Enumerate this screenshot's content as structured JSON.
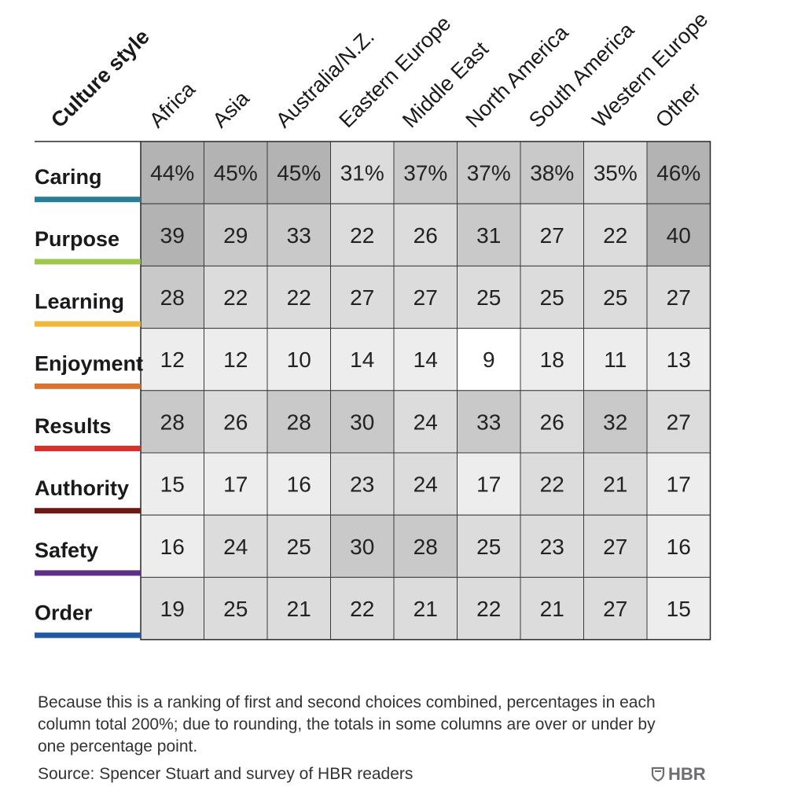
{
  "chart_data": {
    "type": "heatmap",
    "corner_title": "Culture style",
    "columns": [
      "Africa",
      "Asia",
      "Australia/N.Z.",
      "Eastern Europe",
      "Middle East",
      "North America",
      "South America",
      "Western Europe",
      "Other"
    ],
    "rows": [
      {
        "label": "Caring",
        "color": "#2b7d95",
        "values": [
          "44%",
          "45%",
          "45%",
          "31%",
          "37%",
          "37%",
          "38%",
          "35%",
          "46%"
        ],
        "shades": [
          44,
          45,
          45,
          31,
          37,
          37,
          38,
          35,
          46
        ]
      },
      {
        "label": "Purpose",
        "color": "#9cc94a",
        "values": [
          "39",
          "29",
          "33",
          "22",
          "26",
          "31",
          "27",
          "22",
          "40"
        ],
        "shades": [
          39,
          29,
          33,
          22,
          26,
          31,
          27,
          22,
          40
        ]
      },
      {
        "label": "Learning",
        "color": "#f2b63a",
        "values": [
          "28",
          "22",
          "22",
          "27",
          "27",
          "25",
          "25",
          "25",
          "27"
        ],
        "shades": [
          28,
          22,
          22,
          27,
          27,
          25,
          25,
          25,
          27
        ]
      },
      {
        "label": "Enjoyment",
        "color": "#d9732f",
        "values": [
          "12",
          "12",
          "10",
          "14",
          "14",
          "9",
          "18",
          "11",
          "13"
        ],
        "shades": [
          12,
          12,
          10,
          14,
          14,
          9,
          18,
          11,
          13
        ]
      },
      {
        "label": "Results",
        "color": "#d9312b",
        "values": [
          "28",
          "26",
          "28",
          "30",
          "24",
          "33",
          "26",
          "32",
          "27"
        ],
        "shades": [
          28,
          26,
          28,
          30,
          24,
          33,
          26,
          32,
          27
        ]
      },
      {
        "label": "Authority",
        "color": "#6b1a14",
        "values": [
          "15",
          "17",
          "16",
          "23",
          "24",
          "17",
          "22",
          "21",
          "17"
        ],
        "shades": [
          15,
          17,
          16,
          23,
          24,
          17,
          22,
          21,
          17
        ]
      },
      {
        "label": "Safety",
        "color": "#5e2f86",
        "values": [
          "16",
          "24",
          "25",
          "30",
          "28",
          "25",
          "23",
          "27",
          "16"
        ],
        "shades": [
          16,
          24,
          25,
          30,
          28,
          25,
          23,
          27,
          16
        ]
      },
      {
        "label": "Order",
        "color": "#2456a3",
        "values": [
          "19",
          "25",
          "21",
          "22",
          "21",
          "22",
          "21",
          "27",
          "15"
        ],
        "shades": [
          19,
          25,
          21,
          22,
          21,
          22,
          21,
          27,
          15
        ]
      }
    ],
    "shade_colors": {
      "lightest": "#ffffff",
      "light": "#ededed",
      "mid": "#dcdcdc",
      "dark": "#c9c9c9",
      "darkest": "#b3b3b3"
    }
  },
  "footnote": "Because this is a ranking of first and second choices combined, percentages in each column total 200%; due to rounding, the totals in some columns are over or under by one percentage point.",
  "source": "Source: Spencer Stuart and survey of HBR readers",
  "logo_text": "HBR",
  "logo_icon": "shield-icon"
}
